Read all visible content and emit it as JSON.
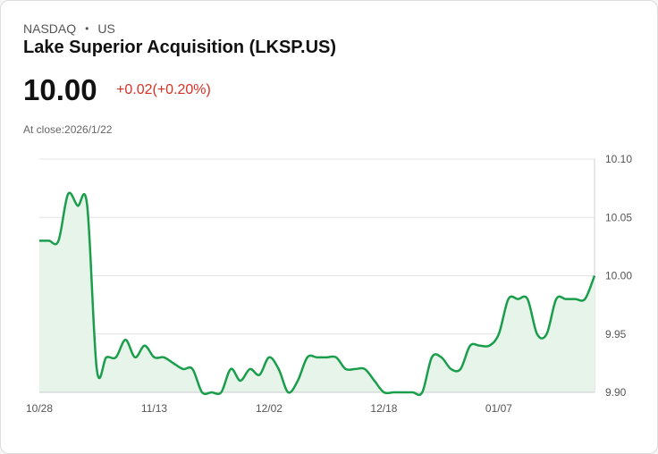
{
  "header": {
    "exchange": "NASDAQ",
    "separator": "•",
    "region": "US",
    "title": "Lake Superior Acquisition (LKSP.US)"
  },
  "quote": {
    "price": "10.00",
    "change": "+0.02(+0.20%)",
    "close_label": "At close:",
    "close_date": "2026/1/22"
  },
  "colors": {
    "line": "#1a9e4b",
    "fill": "#e6f4ea",
    "negative": "#d93025",
    "grid": "#e3e3e3"
  },
  "chart_data": {
    "type": "area",
    "y_ticks": [
      "10.10",
      "10.05",
      "10.00",
      "9.95",
      "9.90"
    ],
    "ylim": [
      9.9,
      10.1
    ],
    "x_ticks": [
      "10/28",
      "11/13",
      "12/02",
      "12/18",
      "01/07"
    ],
    "x_tick_index": [
      0,
      12,
      24,
      36,
      48
    ],
    "values": [
      10.03,
      10.03,
      10.03,
      10.07,
      10.06,
      10.06,
      9.92,
      9.93,
      9.93,
      9.945,
      9.93,
      9.94,
      9.93,
      9.93,
      9.925,
      9.92,
      9.92,
      9.9,
      9.9,
      9.9,
      9.92,
      9.91,
      9.92,
      9.915,
      9.93,
      9.92,
      9.9,
      9.91,
      9.93,
      9.93,
      9.93,
      9.93,
      9.92,
      9.92,
      9.92,
      9.91,
      9.9,
      9.9,
      9.9,
      9.9,
      9.9,
      9.93,
      9.93,
      9.92,
      9.92,
      9.94,
      9.94,
      9.94,
      9.95,
      9.98,
      9.98,
      9.98,
      9.95,
      9.95,
      9.98,
      9.98,
      9.98,
      9.98,
      10.0
    ]
  }
}
